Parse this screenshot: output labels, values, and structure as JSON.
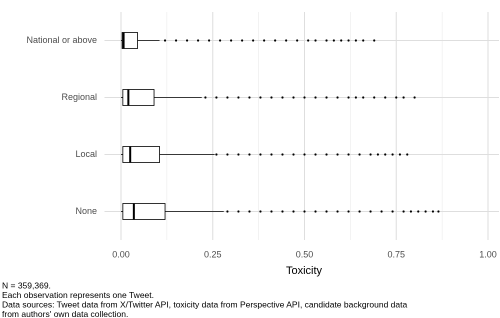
{
  "chart_data": {
    "type": "box",
    "orientation": "horizontal",
    "x_label": "Toxicity",
    "caption": [
      "N = 359,369.",
      "Each observation represents one Tweet.",
      "Data sources: Tweet data from X/Twitter API, toxicity data from Perspective API, candidate background data",
      "from authors' own data collection."
    ],
    "categories": [
      "National or above",
      "Regional",
      "Local",
      "None"
    ],
    "boxes": [
      {
        "min": 0,
        "q1": 0.003,
        "median": 0.007,
        "q3": 0.045,
        "max": 0.105,
        "outliers": [
          0.12,
          0.15,
          0.18,
          0.21,
          0.24,
          0.27,
          0.3,
          0.33,
          0.36,
          0.39,
          0.42,
          0.45,
          0.48,
          0.51,
          0.53,
          0.56,
          0.58,
          0.6,
          0.62,
          0.64,
          0.66,
          0.69
        ]
      },
      {
        "min": 0,
        "q1": 0.005,
        "median": 0.02,
        "q3": 0.09,
        "max": 0.22,
        "outliers": [
          0.23,
          0.26,
          0.29,
          0.32,
          0.35,
          0.38,
          0.41,
          0.44,
          0.47,
          0.5,
          0.53,
          0.56,
          0.59,
          0.62,
          0.64,
          0.66,
          0.69,
          0.72,
          0.75,
          0.77,
          0.8
        ]
      },
      {
        "min": 0,
        "q1": 0.005,
        "median": 0.025,
        "q3": 0.105,
        "max": 0.255,
        "outliers": [
          0.26,
          0.29,
          0.32,
          0.35,
          0.38,
          0.41,
          0.44,
          0.47,
          0.5,
          0.53,
          0.56,
          0.59,
          0.62,
          0.65,
          0.68,
          0.7,
          0.72,
          0.74,
          0.76,
          0.78
        ]
      },
      {
        "min": 0,
        "q1": 0.005,
        "median": 0.035,
        "q3": 0.12,
        "max": 0.28,
        "outliers": [
          0.29,
          0.32,
          0.35,
          0.38,
          0.41,
          0.44,
          0.47,
          0.5,
          0.53,
          0.56,
          0.59,
          0.62,
          0.65,
          0.68,
          0.71,
          0.74,
          0.77,
          0.79,
          0.81,
          0.83,
          0.85,
          0.865
        ]
      }
    ],
    "color": "#000000",
    "xlim": [
      -0.045,
      1.03
    ],
    "xticks": [
      {
        "value": 0,
        "label": "0.00"
      },
      {
        "value": 0.25,
        "label": "0.25"
      },
      {
        "value": 0.5,
        "label": "0.50"
      },
      {
        "value": 0.75,
        "label": "0.75"
      },
      {
        "value": 1,
        "label": "1.00"
      }
    ],
    "xminor_ticks": [
      0.125,
      0.375,
      0.625,
      0.875
    ],
    "grid": true
  }
}
